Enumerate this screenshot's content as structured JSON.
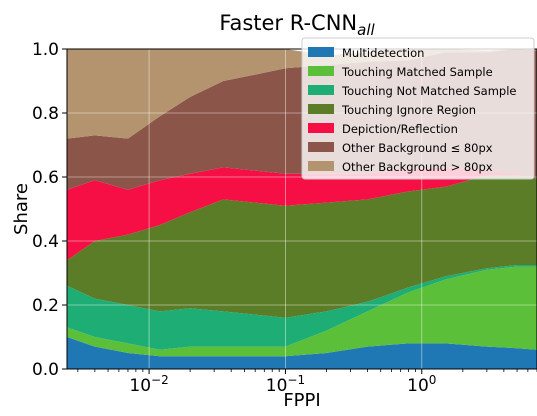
{
  "chart_data": {
    "type": "area",
    "title_main": "Faster R-CNN",
    "title_sub": "all",
    "xlabel": "FPPI",
    "ylabel": "Share",
    "x_scale": "log",
    "xlim": [
      0.0025,
      7
    ],
    "ylim": [
      0,
      1.0
    ],
    "grid": true,
    "legend_position": "top-right",
    "y_ticks": [
      {
        "value": 0.0,
        "label": "0.0"
      },
      {
        "value": 0.2,
        "label": "0.2"
      },
      {
        "value": 0.4,
        "label": "0.4"
      },
      {
        "value": 0.6,
        "label": "0.6"
      },
      {
        "value": 0.8,
        "label": "0.8"
      },
      {
        "value": 1.0,
        "label": "1.0"
      }
    ],
    "x_ticks": [
      {
        "value": 0.01,
        "base": "10",
        "exp": "−2"
      },
      {
        "value": 0.1,
        "base": "10",
        "exp": "−1"
      },
      {
        "value": 1,
        "base": "10",
        "exp": "0"
      }
    ],
    "x": [
      0.0025,
      0.004,
      0.007,
      0.012,
      0.02,
      0.035,
      0.06,
      0.1,
      0.2,
      0.4,
      0.8,
      1.5,
      3,
      5,
      7
    ],
    "series": [
      {
        "name": "Multidetection",
        "color": "#1f77b4",
        "values": [
          0.1,
          0.07,
          0.05,
          0.04,
          0.04,
          0.04,
          0.04,
          0.04,
          0.05,
          0.07,
          0.08,
          0.08,
          0.07,
          0.065,
          0.06
        ]
      },
      {
        "name": "Touching Matched Sample",
        "color": "#5bbf3a",
        "values": [
          0.03,
          0.03,
          0.03,
          0.02,
          0.03,
          0.03,
          0.03,
          0.03,
          0.07,
          0.11,
          0.16,
          0.2,
          0.24,
          0.255,
          0.26
        ]
      },
      {
        "name": "Touching Not Matched Sample",
        "color": "#1fad76",
        "values": [
          0.13,
          0.12,
          0.12,
          0.12,
          0.12,
          0.11,
          0.1,
          0.09,
          0.06,
          0.03,
          0.015,
          0.01,
          0.005,
          0.005,
          0.005
        ]
      },
      {
        "name": "Touching Ignore Region",
        "color": "#5c7d28",
        "values": [
          0.08,
          0.18,
          0.22,
          0.27,
          0.3,
          0.35,
          0.35,
          0.35,
          0.34,
          0.32,
          0.3,
          0.28,
          0.29,
          0.28,
          0.27
        ]
      },
      {
        "name": "Depiction/Reflection",
        "color": "#f50f45",
        "values": [
          0.22,
          0.19,
          0.14,
          0.14,
          0.12,
          0.1,
          0.1,
          0.1,
          0.09,
          0.08,
          0.07,
          0.06,
          0.015,
          0.005,
          0.0
        ]
      },
      {
        "name": "Other Background  ≤  80px",
        "color": "#8b5549",
        "values": [
          0.16,
          0.14,
          0.16,
          0.2,
          0.24,
          0.27,
          0.3,
          0.33,
          0.34,
          0.35,
          0.34,
          0.36,
          0.37,
          0.39,
          0.4
        ]
      },
      {
        "name": "Other Background > 80px",
        "color": "#b4946e",
        "values": [
          0.28,
          0.27,
          0.28,
          0.21,
          0.15,
          0.1,
          0.08,
          0.06,
          0.03,
          0.03,
          0.035,
          0.01,
          0.005,
          0.005,
          0.005
        ]
      }
    ]
  }
}
